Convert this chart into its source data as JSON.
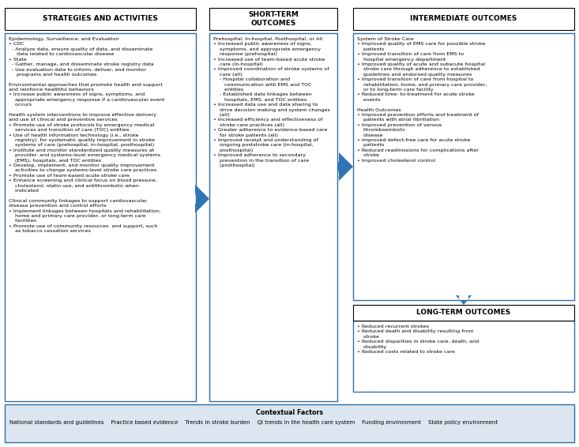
{
  "title_strategies": "STRATEGIES AND ACTIVITIES",
  "title_short_term": "SHORT-TERM\nOUTCOMES",
  "title_intermediate": "INTERMEDIATE OUTCOMES",
  "title_long_term": "LONG-TERM OUTCOMES",
  "title_contextual": "Contextual Factors",
  "contextual_items": "National standards and guidelines    Practice based evidence    Trends in stroke burden    QI trends in the health care system    Funding environment    State policy environment",
  "strategies_text": "Epidemiology, Surveillance, and Evaluation\n• CDC\n  - Analyze data, ensure quality of data, and disseminate\n     data related to cardiovascular disease\n• State\n  - Gather, manage, and disseminate stroke registry data\n  - Use evaluation data to inform, deliver, and monitor\n     programs and health outcomes\n\nEnvironmental approaches that promote health and support\nand reinforce healthful behaviors\n• Increase public awareness of signs, symptoms, and\n    appropriate emergency response if a cardiovascular event\n    occurs\n\nHealth system interventions to improve effective delivery\nand use of clinical and preventive services\n• Promote use of stroke protocols by emergency medical\n    services and transition of care (TOC) entities\n• Use of health information technology (i.e., stroke\n    registry)  for systematic quality improvement in stroke\n    systems of care (prehospital, in-hospital, posthospital)\n• Institute and monitor standardized quality measures at\n    provider- and systems-level emergency medical systems\n    (EMS), hospitals, and TOC entities\n• Develop, implement, and monitor quality improvement\n    activities to change systems-level stroke care practices\n• Promote use of team-based acute stroke care\n• Enhance screening and clinical focus on blood pressure,\n    cholesterol, statin use, and antithrombotic when\n    indicated\n\nClinical community linkages to support cardiovascular\ndisease prevention and control efforts\n• Implement linkages between hospitals and rehabilitation,\n    home and primary care provider, or long-term care\n    facilities\n• Promote use of community resources  and support, such\n    as tobacco cessation services",
  "short_term_text": "Prehospital, In-hospital, Posthospital, or All\n• Increased public awareness of signs,\n    symptoms, and appropriate emergency\n    response (prehospital)\n• Increased use of team-based acute stroke\n    care (in-hospital)\n• Improved coordination of stroke systems of\n    care (all)\n    - Hospital collaboration and\n       communication with EMS and TOC\n       entities\n    - Established data linkages between\n       hospitals, EMS, and TOC entities\n• Increased data use and data sharing to\n    drive decision making and system changes\n    (all)\n• Increased efficiency and effectiveness of\n    stroke care practices (all)\n• Greater adherence to evidence-based care\n    for stroke patients (all)\n• Improved receipt and understanding of\n    ongoing poststroke care (in-hospital,\n    posthospital)\n• Improved adherence to secondary\n    prevention in the transition of care\n    (posthospital)",
  "intermediate_text": "System of Stroke Care\n• Improved quality of EMS care for possible stroke\n    patients\n• Improved transition of care from EMS to\n    hospital emergency department\n• Improved quality of acute and subacute hospital\n    stroke care through adherence to established\n    guidelines and endorsed quality measures\n• Improved transition of care from hospital to\n    rehabilitation, home, and primary care provider,\n    or to long-term care facility\n• Reduced time- to-treatment for acute stroke\n    events\n\nHealth Outcomes\n• Improved prevention efforts and treatment of\n    patients with atrial fibrillation\n• Improved prevention of venous\n    thromboembolic\n    disease\n• Improved defect-free care for acute stroke\n    patients\n• Reduced readmissions for complications after\n    stroke\n• Improved cholesterol control",
  "long_term_text": "• Reduced recurrent strokes\n• Reduced death and disability resulting from\n    stroke\n• Reduced disparities in stroke care, death, and\n    disability\n• Reduced costs related to stroke care",
  "bg_color": "#ffffff",
  "blue_edge": "#2e6da4",
  "black_edge": "#000000",
  "ctx_bg": "#dce6f1",
  "arrow_color": "#2e75b6",
  "fig_w": 7.33,
  "fig_h": 5.66,
  "dpi": 100
}
